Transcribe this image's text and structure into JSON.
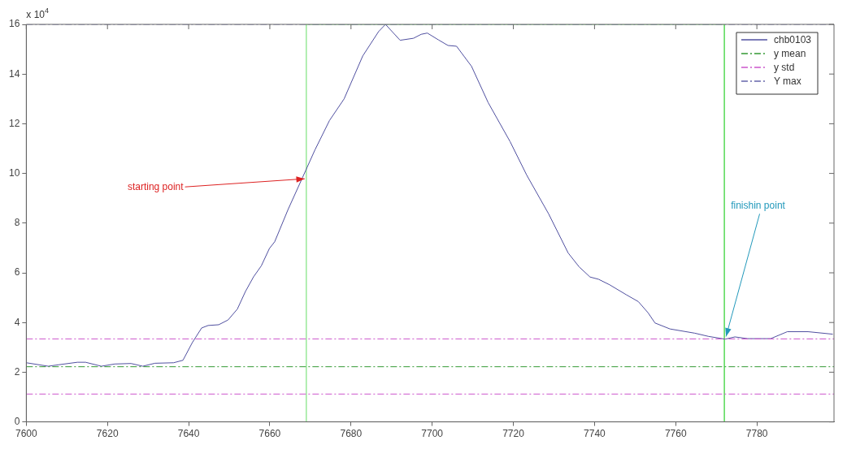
{
  "chart_data": {
    "type": "line",
    "xlim": [
      7600,
      7799
    ],
    "xticks": [
      7600,
      7620,
      7640,
      7660,
      7680,
      7700,
      7720,
      7740,
      7760,
      7780
    ],
    "ylim": [
      0,
      16
    ],
    "yticks": [
      0,
      2,
      4,
      6,
      8,
      10,
      12,
      14,
      16
    ],
    "legend": "top right",
    "series": [
      {
        "name": "chb0103",
        "color": "#5050a0",
        "x": [
          7600,
          7605.4,
          7608,
          7612.6,
          7614.6,
          7618.5,
          7621.8,
          7625.8,
          7628.7,
          7631.7,
          7636.3,
          7638.6,
          7640.9,
          7643.2,
          7644.8,
          7647.4,
          7649.7,
          7652,
          7654,
          7656,
          7657.9,
          7659.9,
          7661.2,
          7664.5,
          7668.1,
          7671.1,
          7674.7,
          7678.3,
          7682.9,
          7686.8,
          7688.5,
          7692.1,
          7695.4,
          7697.3,
          7698.8,
          7701.6,
          7703.9,
          7706,
          7709.7,
          7713.8,
          7719.2,
          7723.3,
          7728.7,
          7733.5,
          7736.2,
          7738.9,
          7741,
          7743.7,
          7747.8,
          7750.8,
          7753.2,
          7754.9,
          7758.6,
          7764.7,
          7768.1,
          7772.2,
          7774.6,
          7777.7,
          7783.4,
          7787.5,
          7792.6,
          7798.7
        ],
        "values": [
          2.38,
          2.24,
          2.3,
          2.4,
          2.4,
          2.24,
          2.33,
          2.35,
          2.24,
          2.36,
          2.38,
          2.48,
          3.19,
          3.78,
          3.88,
          3.91,
          4.1,
          4.54,
          5.25,
          5.84,
          6.28,
          6.98,
          7.25,
          8.55,
          9.85,
          10.94,
          12.13,
          13.0,
          14.73,
          15.71,
          16.0,
          15.36,
          15.44,
          15.6,
          15.65,
          15.37,
          15.15,
          15.12,
          14.31,
          12.85,
          11.28,
          9.93,
          8.37,
          6.8,
          6.24,
          5.83,
          5.74,
          5.52,
          5.12,
          4.84,
          4.39,
          3.98,
          3.74,
          3.57,
          3.44,
          3.33,
          3.42,
          3.35,
          3.35,
          3.63,
          3.63,
          3.53
        ]
      },
      {
        "color": "#66dd66",
        "x": [
          7669,
          7669,
          7772,
          7772
        ],
        "values": [
          0,
          16,
          16,
          0
        ]
      }
    ],
    "ref_lines": [
      {
        "axis": "y",
        "value": 2.22,
        "label": "y mean",
        "color": "#339933",
        "line_style": "dashdot"
      },
      {
        "axis": "y",
        "value": 3.34,
        "label": "y std",
        "color": "#cc55cc",
        "line_style": "dashdot"
      },
      {
        "axis": "y",
        "value": 1.12,
        "color": "#cc55cc",
        "line_style": "dashdot"
      },
      {
        "axis": "y",
        "value": 16,
        "label": "Y max",
        "color": "#6666aa",
        "line_style": "dashdot"
      }
    ],
    "annotations": [
      "x 10$^{4}$",
      {
        "text": "starting point",
        "x": 7669,
        "y": 9.85
      },
      {
        "text": "finishin point",
        "x": 7772,
        "y": 3.34
      }
    ]
  }
}
